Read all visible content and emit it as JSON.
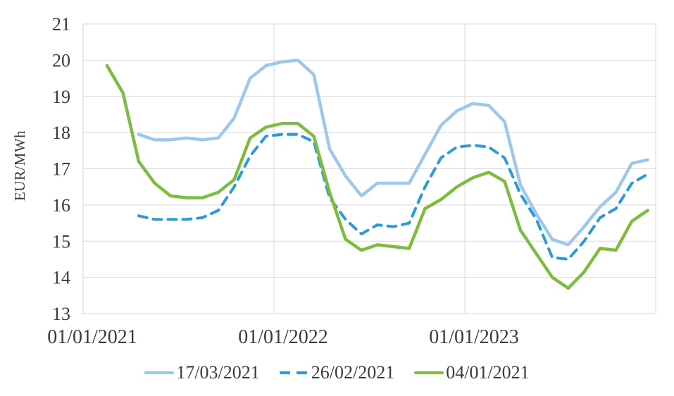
{
  "chart_data": {
    "type": "line",
    "title": "",
    "ylabel": "EUR/MWh",
    "xlabel": "",
    "ylim": [
      13,
      21
    ],
    "y_ticks": [
      13,
      14,
      15,
      16,
      17,
      18,
      19,
      20,
      21
    ],
    "x_tick_labels": [
      "01/01/2021",
      "01/01/2022",
      "01/01/2023"
    ],
    "x_tick_month_index": [
      0,
      12,
      24
    ],
    "grid": true,
    "grid_color": "#D9D9D9",
    "text_color": "#3a3a3a",
    "background_color": "#ffffff",
    "legend_position": "bottom",
    "months": [
      "01/2021",
      "02/2021",
      "03/2021",
      "04/2021",
      "05/2021",
      "06/2021",
      "07/2021",
      "08/2021",
      "09/2021",
      "10/2021",
      "11/2021",
      "12/2021",
      "01/2022",
      "02/2022",
      "03/2022",
      "04/2022",
      "05/2022",
      "06/2022",
      "07/2022",
      "08/2022",
      "09/2022",
      "10/2022",
      "11/2022",
      "12/2022",
      "01/2023",
      "02/2023",
      "03/2023",
      "04/2023",
      "05/2023",
      "06/2023",
      "07/2023",
      "08/2023",
      "09/2023",
      "10/2023",
      "11/2023",
      "12/2023"
    ],
    "series": [
      {
        "name": "17/03/2021",
        "color": "#9DC8EA",
        "style": "solid",
        "width": 4.5,
        "values": [
          null,
          null,
          null,
          17.95,
          17.8,
          17.8,
          17.85,
          17.8,
          17.85,
          18.4,
          19.5,
          19.85,
          19.95,
          20.0,
          19.6,
          17.55,
          16.8,
          16.25,
          16.6,
          16.6,
          16.6,
          17.4,
          18.2,
          18.6,
          18.8,
          18.75,
          18.3,
          16.55,
          15.75,
          15.05,
          14.9,
          15.4,
          15.95,
          16.35,
          17.15,
          17.25
        ]
      },
      {
        "name": "26/02/2021",
        "color": "#2B9AD7",
        "style": "dashed",
        "width": 4,
        "values": [
          null,
          null,
          null,
          15.7,
          15.6,
          15.6,
          15.6,
          15.65,
          15.85,
          16.5,
          17.35,
          17.9,
          17.95,
          17.95,
          17.75,
          16.2,
          15.6,
          15.2,
          15.45,
          15.4,
          15.5,
          16.5,
          17.3,
          17.6,
          17.65,
          17.6,
          17.3,
          16.3,
          15.6,
          14.55,
          14.5,
          15.0,
          15.65,
          15.9,
          16.6,
          16.85
        ]
      },
      {
        "name": "04/01/2021",
        "color": "#7EBB41",
        "style": "solid",
        "width": 4.5,
        "values": [
          null,
          19.85,
          19.1,
          17.2,
          16.6,
          16.25,
          16.2,
          16.2,
          16.35,
          16.7,
          17.85,
          18.15,
          18.25,
          18.25,
          17.9,
          16.35,
          15.05,
          14.75,
          14.9,
          14.85,
          14.8,
          15.9,
          16.15,
          16.5,
          16.75,
          16.9,
          16.65,
          15.3,
          14.65,
          14.0,
          13.7,
          14.15,
          14.8,
          14.75,
          15.55,
          15.85
        ]
      }
    ]
  }
}
